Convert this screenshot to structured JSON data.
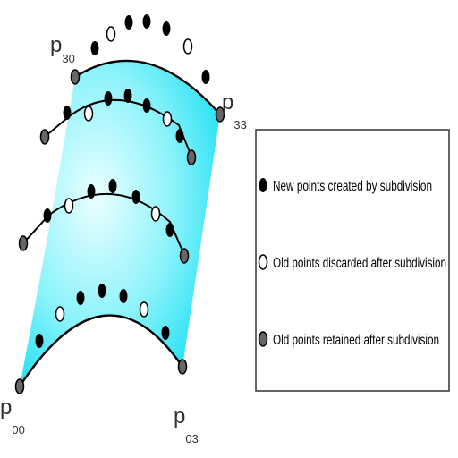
{
  "corners": {
    "p30": {
      "letter": "p",
      "sub": "30"
    },
    "p33": {
      "letter": "p",
      "sub": "33"
    },
    "p00": {
      "letter": "p",
      "sub": "00"
    },
    "p03": {
      "letter": "p",
      "sub": "03"
    }
  },
  "legend": {
    "items": [
      {
        "marker": "filled-black",
        "label": "New points created by subdivision"
      },
      {
        "marker": "hollow-white",
        "label": "Old points discarded after subdivision"
      },
      {
        "marker": "filled-gray",
        "label": "Old points retained after subdivision"
      }
    ]
  },
  "colors": {
    "surface_edge": "#1fe0f2",
    "surface_center": "#eaffff",
    "new_point": "#000000",
    "discarded_point": "#ffffff",
    "retained_point": "#666666"
  }
}
